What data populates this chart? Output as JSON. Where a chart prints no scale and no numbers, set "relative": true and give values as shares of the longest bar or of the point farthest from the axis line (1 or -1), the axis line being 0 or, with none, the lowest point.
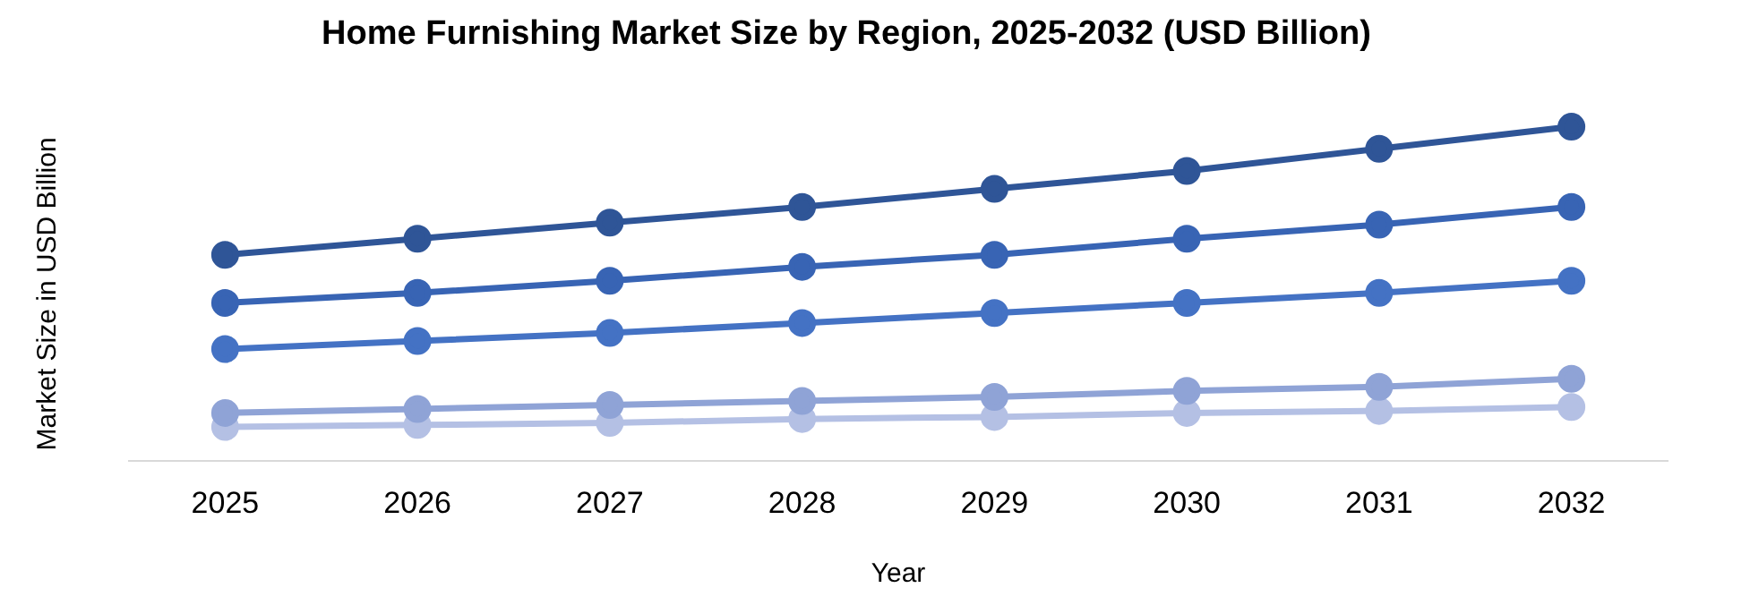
{
  "chart_data": {
    "type": "line",
    "relative": true,
    "title": "Home Furnishing Market Size by Region, 2025-2032 (USD Billion)",
    "xlabel": "Year",
    "ylabel": "Market Size in USD Billion",
    "categories": [
      "2025",
      "2026",
      "2027",
      "2028",
      "2029",
      "2030",
      "2031",
      "2032"
    ],
    "marker": "circle",
    "grid": false,
    "legend": false,
    "series": [
      {
        "color": "#2f5597",
        "values": [
          0.617,
          0.665,
          0.713,
          0.76,
          0.814,
          0.868,
          0.934,
          1
        ]
      },
      {
        "color": "#3864b4",
        "values": [
          0.473,
          0.503,
          0.539,
          0.581,
          0.617,
          0.665,
          0.707,
          0.76
        ]
      },
      {
        "color": "#4472c4",
        "values": [
          0.335,
          0.359,
          0.383,
          0.413,
          0.443,
          0.473,
          0.503,
          0.539
        ]
      },
      {
        "color": "#8fa3d6",
        "values": [
          0.144,
          0.156,
          0.168,
          0.18,
          0.192,
          0.21,
          0.222,
          0.246
        ]
      },
      {
        "color": "#b4c0e4",
        "values": [
          0.102,
          0.108,
          0.114,
          0.126,
          0.132,
          0.144,
          0.15,
          0.162
        ]
      }
    ]
  }
}
